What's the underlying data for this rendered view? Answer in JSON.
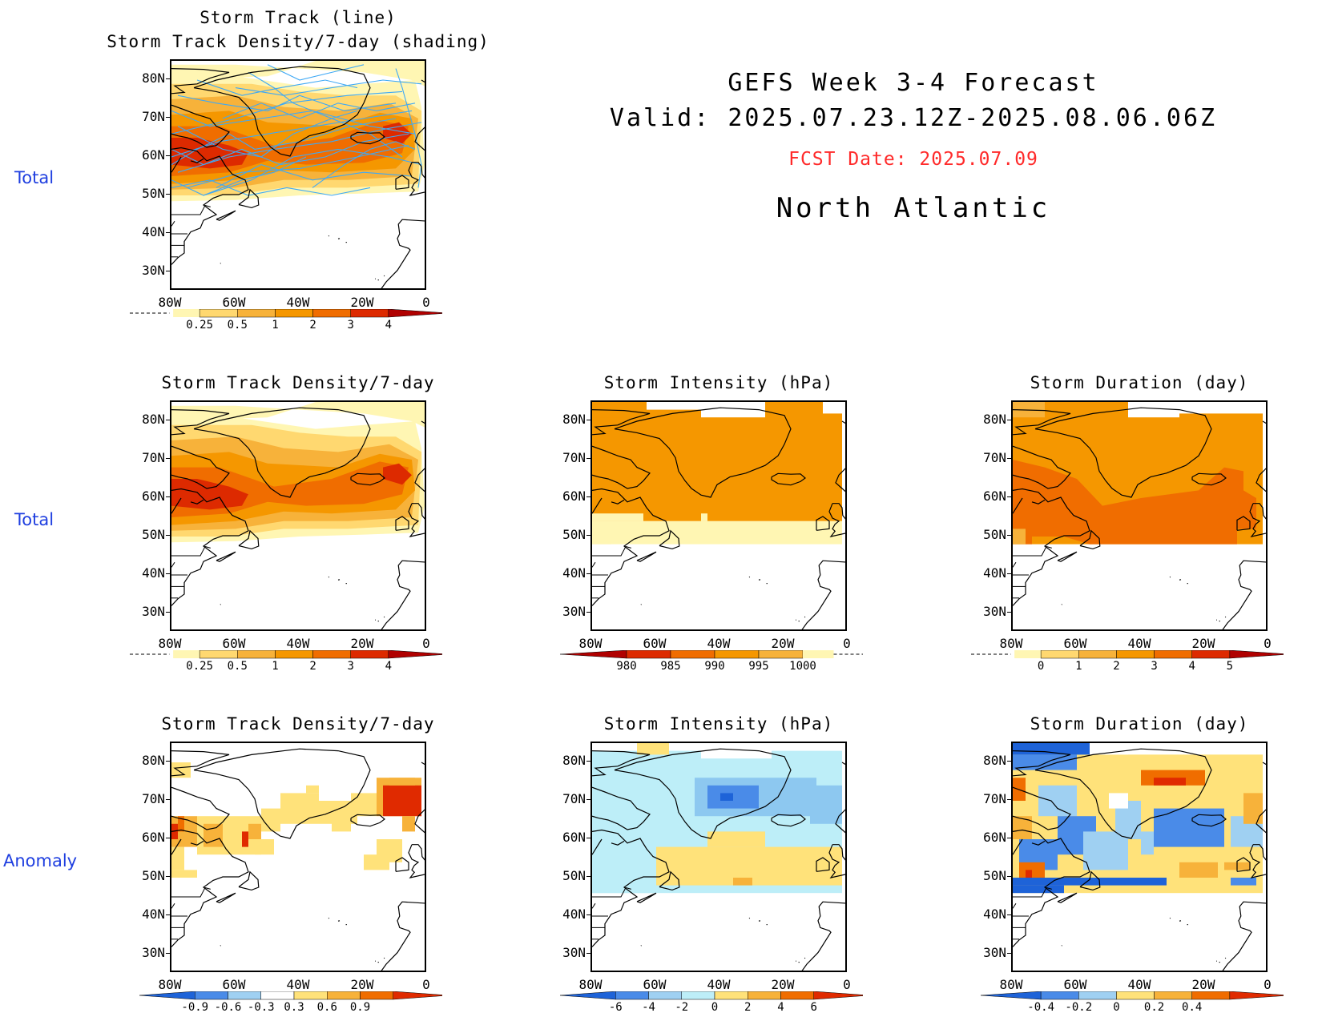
{
  "header": {
    "line1": "GEFS Week 3-4 Forecast",
    "line2": "Valid: 2025.07.23.12Z-2025.08.06.06Z",
    "fcst_date": "FCST Date: 2025.07.09",
    "region": "North Atlantic",
    "fcst_color": "#ff2a2a"
  },
  "row_labels": [
    "Total",
    "Total",
    "Anomaly"
  ],
  "axes": {
    "lat_labels": [
      "80N",
      "70N",
      "60N",
      "50N",
      "40N",
      "30N"
    ],
    "lon_labels": [
      "80W",
      "60W",
      "40W",
      "20W",
      "0"
    ]
  },
  "panels": [
    {
      "key": "track",
      "title_lines": [
        "Storm Track (line)",
        "Storm Track Density/7-day (shading)"
      ],
      "fill": "density",
      "has_tracks": true,
      "colorbar": {
        "labels": [
          "0.25",
          "0.5",
          "1",
          "2",
          "3",
          "4"
        ],
        "colors": [
          "#fff6b3",
          "#ffd870",
          "#f7b23a",
          "#f59700",
          "#f06d00",
          "#dd2a00",
          "#b00000"
        ],
        "style": "density"
      }
    },
    {
      "key": "density",
      "title_lines": [
        "Storm Track Density/7-day"
      ],
      "fill": "density",
      "colorbar": {
        "labels": [
          "0.25",
          "0.5",
          "1",
          "2",
          "3",
          "4"
        ],
        "colors": [
          "#fff6b3",
          "#ffd870",
          "#f7b23a",
          "#f59700",
          "#f06d00",
          "#dd2a00",
          "#b00000"
        ],
        "style": "density"
      }
    },
    {
      "key": "intensity",
      "title_lines": [
        "Storm Intensity (hPa)"
      ],
      "fill": "intensity",
      "colorbar": {
        "labels": [
          "980",
          "985",
          "990",
          "995",
          "1000"
        ],
        "colors": [
          "#b00000",
          "#dd2a00",
          "#f06d00",
          "#f59700",
          "#f7b23a",
          "#fff6b3"
        ],
        "style": "intensity"
      }
    },
    {
      "key": "duration",
      "title_lines": [
        "Storm Duration (day)"
      ],
      "fill": "duration",
      "colorbar": {
        "labels": [
          "0",
          "1",
          "2",
          "3",
          "4",
          "5"
        ],
        "colors": [
          "#fff6b3",
          "#ffd870",
          "#f7b23a",
          "#f59700",
          "#f06d00",
          "#dd2a00",
          "#b00000"
        ],
        "style": "density"
      }
    },
    {
      "key": "density_anom",
      "title_lines": [
        "Storm Track Density/7-day"
      ],
      "fill": "density_anom",
      "colorbar": {
        "labels": [
          "-0.9",
          "-0.6",
          "-0.3",
          "0.3",
          "0.6",
          "0.9"
        ],
        "colors": [
          "#1e63d8",
          "#4a8be8",
          "#9fd0f2",
          "#ffffff",
          "#ffe27a",
          "#f7b23a",
          "#f06d00",
          "#e02a00"
        ],
        "style": "anom"
      }
    },
    {
      "key": "intensity_anom",
      "title_lines": [
        "Storm Intensity (hPa)"
      ],
      "fill": "intensity_anom",
      "colorbar": {
        "labels": [
          "-6",
          "-4",
          "-2",
          "0",
          "2",
          "4",
          "6"
        ],
        "colors": [
          "#1e63d8",
          "#4a8be8",
          "#9fd0f2",
          "#bdeef8",
          "#ffe27a",
          "#f7b23a",
          "#f06d00",
          "#e02a00"
        ],
        "style": "anom"
      }
    },
    {
      "key": "duration_anom",
      "title_lines": [
        "Storm Duration (day)"
      ],
      "fill": "duration_anom",
      "colorbar": {
        "labels": [
          "-0.4",
          "-0.2",
          "0",
          "0.2",
          "0.4"
        ],
        "colors": [
          "#1e63d8",
          "#4a8be8",
          "#9fd0f2",
          "#ffe27a",
          "#f7b23a",
          "#f06d00",
          "#e02a00"
        ],
        "style": "anom"
      }
    }
  ]
}
